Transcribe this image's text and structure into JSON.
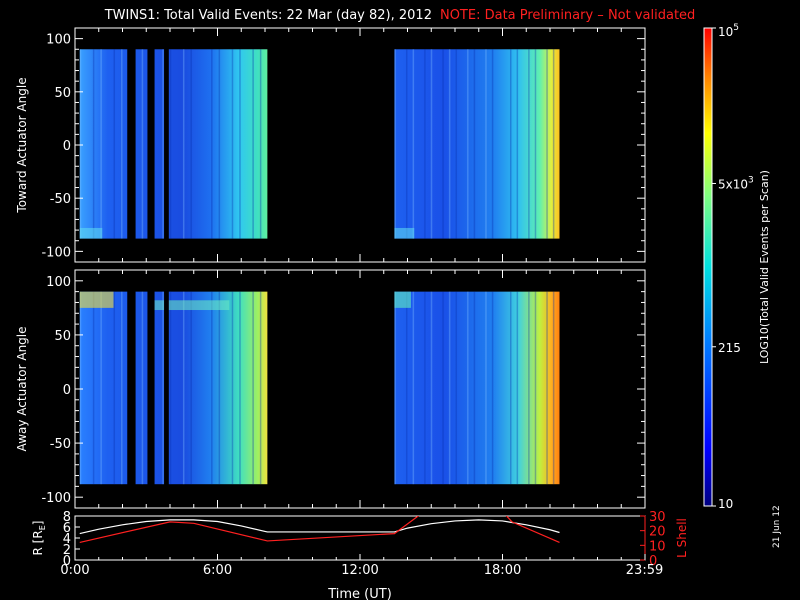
{
  "title": {
    "main": "TWINS1: Total Valid Events: 22 Mar (day  82), 2012",
    "note": "NOTE: Data Preliminary – Not validated"
  },
  "stamp": "21 Jun 12",
  "colors": {
    "background": "#000000",
    "axis": "#ffffff",
    "note": "#ff2020",
    "r_line": "#ffffff",
    "lshell_line": "#ff2020"
  },
  "chart_data": [
    {
      "type": "heatmap",
      "ylabel": "Toward Actuator Angle",
      "ylim": [
        -110,
        110
      ],
      "yticks": [
        -100,
        -50,
        0,
        50,
        100
      ],
      "xlim": [
        0,
        24
      ],
      "data_y_range": [
        -88,
        90
      ],
      "data_segments_hours": [
        [
          0.2,
          8.1
        ],
        [
          13.45,
          20.4
        ]
      ],
      "gaps_hours": [
        [
          2.2,
          2.55
        ],
        [
          3.05,
          3.35
        ],
        [
          3.75,
          3.95
        ]
      ]
    },
    {
      "type": "heatmap",
      "ylabel": "Away Actuator Angle",
      "ylim": [
        -110,
        110
      ],
      "yticks": [
        -100,
        -50,
        0,
        50,
        100
      ],
      "xlim": [
        0,
        24
      ],
      "data_y_range": [
        -88,
        90
      ],
      "data_segments_hours": [
        [
          0.2,
          8.1
        ],
        [
          13.45,
          20.4
        ]
      ],
      "gaps_hours": [
        [
          2.2,
          2.55
        ],
        [
          3.05,
          3.35
        ],
        [
          3.75,
          3.95
        ]
      ]
    },
    {
      "type": "colorbar",
      "label": "LOG10(Total Valid Events per Scan)",
      "scale": "log",
      "range": [
        10,
        100000
      ],
      "tick_labels": [
        {
          "text": "10^5",
          "value": 100000
        },
        {
          "text": "5x10^3",
          "value": 5000
        },
        {
          "text": "215",
          "value": 215
        },
        {
          "text": "10",
          "value": 10
        }
      ]
    },
    {
      "type": "line",
      "xlabel": "Time (UT)",
      "xlim": [
        0,
        24
      ],
      "xtick_labels": [
        "0:00",
        "6:00",
        "12:00",
        "18:00",
        "23:59"
      ],
      "xtick_values": [
        0,
        6,
        12,
        18,
        23.98
      ],
      "ylabel_left": "R [RE]",
      "ylim_left": [
        0,
        8
      ],
      "yticks_left": [
        0,
        2,
        4,
        6,
        8
      ],
      "ylabel_right": "L Shell",
      "ylim_right": [
        0,
        30
      ],
      "yticks_right": [
        0,
        10,
        20,
        30
      ],
      "series": [
        {
          "name": "R [RE]",
          "axis": "left",
          "color": "#ffffff",
          "x": [
            0.2,
            1,
            2,
            3,
            4,
            5,
            6,
            7,
            8,
            8.1,
            13.45,
            14,
            15,
            16,
            17,
            18,
            19,
            20,
            20.4
          ],
          "y": [
            4.8,
            5.6,
            6.4,
            7.0,
            7.3,
            7.3,
            7.0,
            6.2,
            5.2,
            5.1,
            5.1,
            5.8,
            6.6,
            7.1,
            7.3,
            7.1,
            6.4,
            5.5,
            5.0
          ]
        },
        {
          "name": "L Shell",
          "axis": "right",
          "color": "#ff2020",
          "segments": [
            {
              "x": [
                0.2,
                4,
                5,
                8.1,
                13.45,
                14.7
              ],
              "y": [
                12,
                26,
                25,
                13,
                18,
                33
              ]
            },
            {
              "x": [
                18,
                18.4,
                20.4
              ],
              "y": [
                33,
                26,
                12
              ]
            }
          ]
        }
      ]
    }
  ]
}
